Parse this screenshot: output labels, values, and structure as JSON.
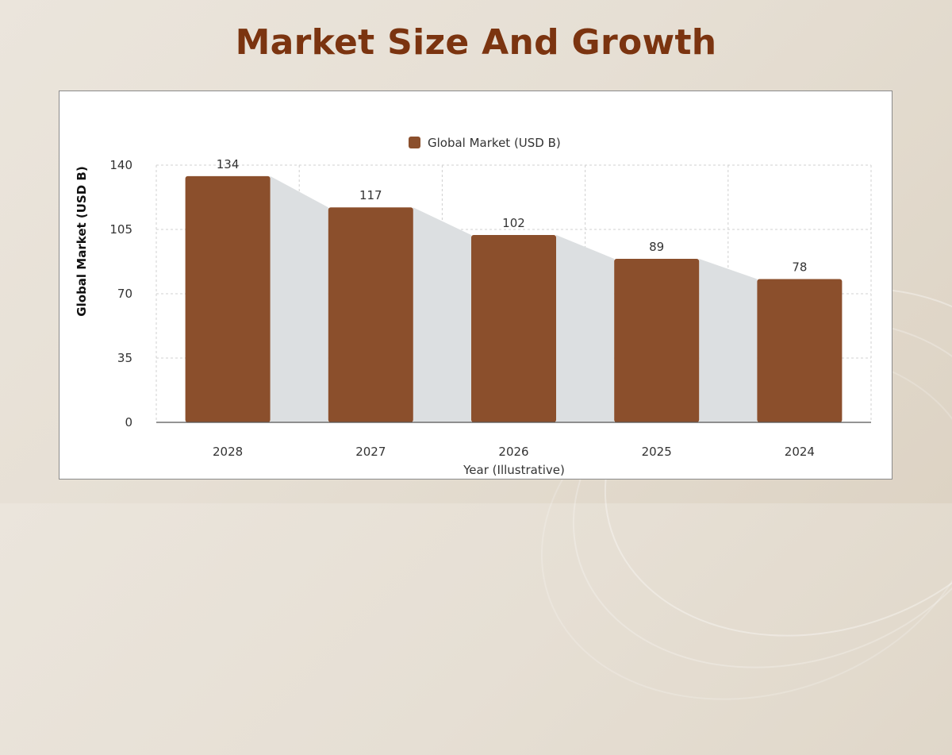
{
  "page": {
    "title": "Market Size And Growth"
  },
  "chart_data": {
    "type": "bar",
    "title": "",
    "xlabel": "Year (Illustrative)",
    "ylabel": "Global Market (USD B)",
    "categories": [
      "2028",
      "2027",
      "2026",
      "2025",
      "2024"
    ],
    "series": [
      {
        "name": "Global Market (USD B)",
        "values": [
          134,
          117,
          102,
          89,
          78
        ],
        "color": "#8b4f2c"
      }
    ],
    "data_labels": [
      "134",
      "117",
      "102",
      "89",
      "78"
    ],
    "ylim": [
      0,
      140
    ],
    "yticks": [
      0,
      35,
      70,
      105,
      140
    ],
    "ytick_labels": [
      "0",
      "35",
      "70",
      "105",
      "140"
    ],
    "grid": true,
    "legend": "top-center",
    "area_fill_color": "#dcdfe1"
  }
}
